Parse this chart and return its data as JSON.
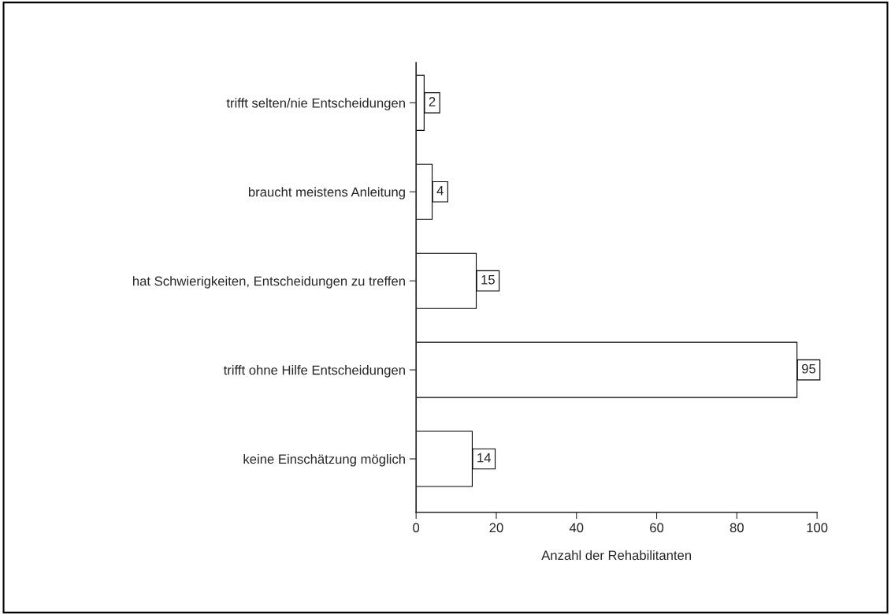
{
  "chart_data": {
    "type": "bar",
    "orientation": "horizontal",
    "xlabel": "Anzahl der Rehabilitanten",
    "categories": [
      "trifft selten/nie Entscheidungen",
      "braucht meistens Anleitung",
      "hat Schwierigkeiten, Entscheidungen zu treffen",
      "trifft ohne Hilfe Entscheidungen",
      "keine Einschätzung möglich"
    ],
    "values": [
      2,
      4,
      15,
      95,
      14
    ],
    "color": "#ffffff",
    "xlim": [
      0,
      100
    ],
    "xticks": [
      0,
      20,
      40,
      60,
      80,
      100
    ],
    "data_labels": true,
    "grid": false,
    "legend": false
  }
}
